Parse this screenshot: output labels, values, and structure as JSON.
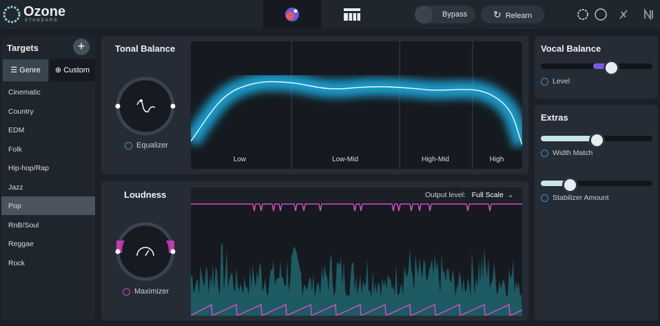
{
  "header": {
    "logo": "Ozone",
    "edition": "STANDARD",
    "bypass": "Bypass",
    "relearn": "Relearn"
  },
  "targets": {
    "title": "Targets",
    "tabs": [
      "Genre",
      "Custom"
    ],
    "genres": [
      "Cinematic",
      "Country",
      "EDM",
      "Folk",
      "Hip-hop/Rap",
      "Jazz",
      "Pop",
      "RnB/Soul",
      "Reggae",
      "Rock"
    ]
  },
  "tonal_balance": {
    "title": "Tonal Balance",
    "knob_label": "Equalizer",
    "bands": [
      "Low",
      "Low-Mid",
      "High-Mid",
      "High"
    ]
  },
  "loudness": {
    "title": "Loudness",
    "knob_label": "Maximizer",
    "output_label": "Output level:",
    "output_value": "Full Scale"
  },
  "vocal_balance": {
    "title": "Vocal Balance",
    "slider_label": "Level"
  },
  "extras": {
    "title": "Extras",
    "sliders": [
      "Width Match",
      "Stabilizer Amount"
    ]
  }
}
